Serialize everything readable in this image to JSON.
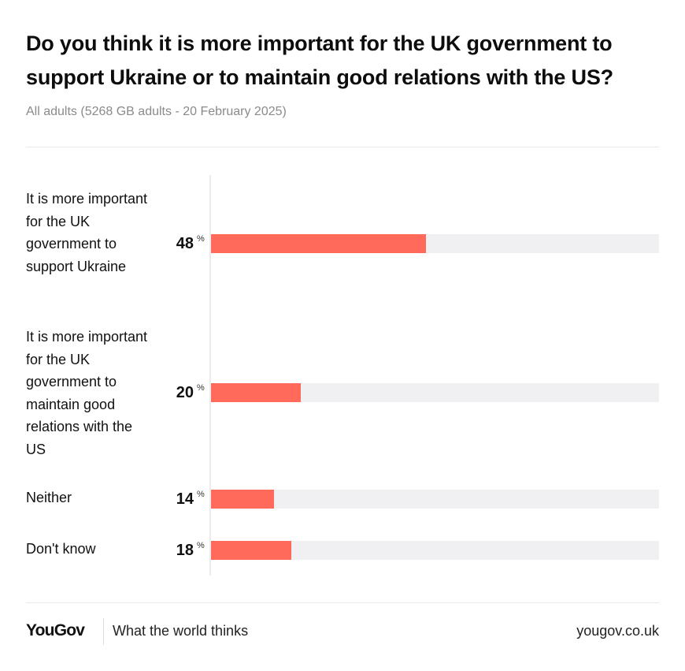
{
  "chart_data": {
    "type": "bar",
    "orientation": "horizontal",
    "title": "Do you think it is more important for the UK government to support Ukraine or to maintain good relations with the US?",
    "subtitle": "All adults (5268 GB adults - 20 February 2025)",
    "unit": "%",
    "xlim": [
      0,
      100
    ],
    "bar_color": "#ff6a5a",
    "track_color": "#f0f0f2",
    "categories": [
      "It is more important for the UK government to support Ukraine",
      "It is more important for the UK government to maintain good relations with the US",
      "Neither",
      "Don't know"
    ],
    "values": [
      48,
      20,
      14,
      18
    ]
  },
  "footer": {
    "logo": "YouGov",
    "tagline": "What the world thinks",
    "url": "yougov.co.uk"
  }
}
